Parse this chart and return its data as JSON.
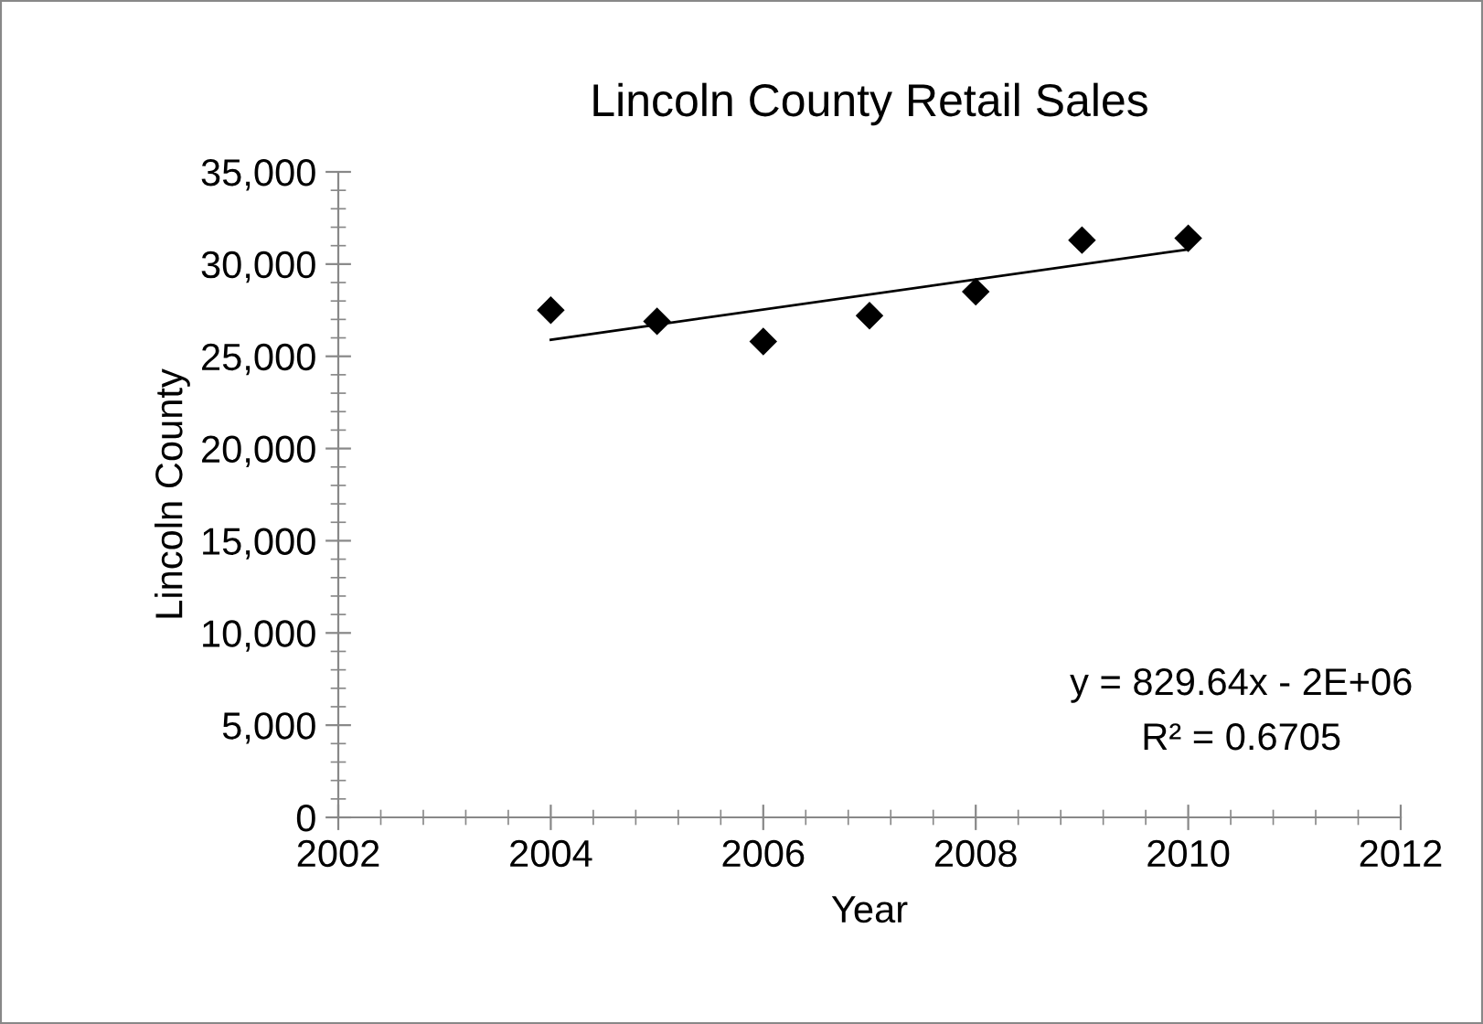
{
  "chart_data": {
    "type": "scatter",
    "title": "Lincoln County Retail Sales",
    "xlabel": "Year",
    "ylabel": "Lincoln County",
    "x": [
      2004,
      2005,
      2006,
      2007,
      2008,
      2009,
      2010
    ],
    "series": [
      {
        "color": "#000000",
        "marker": "diamond",
        "values": [
          27500,
          26900,
          25800,
          27200,
          28500,
          31300,
          31400
        ]
      },
      {
        "type": "line",
        "color": "#000000",
        "marker": "none",
        "x": [
          2004,
          2010
        ],
        "values": [
          25900,
          30800
        ]
      }
    ],
    "xlim": [
      2002,
      2012
    ],
    "xticks": [
      2002,
      2004,
      2006,
      2008,
      2010,
      2012
    ],
    "ylim": [
      0,
      35000
    ],
    "yticks": [
      {
        "value": 0,
        "label": "0"
      },
      {
        "value": 5000,
        "label": "5,000"
      },
      {
        "value": 10000,
        "label": "10,000"
      },
      {
        "value": 15000,
        "label": "15,000"
      },
      {
        "value": 20000,
        "label": "20,000"
      },
      {
        "value": 25000,
        "label": "25,000"
      },
      {
        "value": 30000,
        "label": "30,000"
      },
      {
        "value": 35000,
        "label": "35,000"
      }
    ],
    "grid": false,
    "legend": false,
    "annotations": [
      "y = 829.64x - 2E+06",
      "R² = 0.6705"
    ]
  }
}
